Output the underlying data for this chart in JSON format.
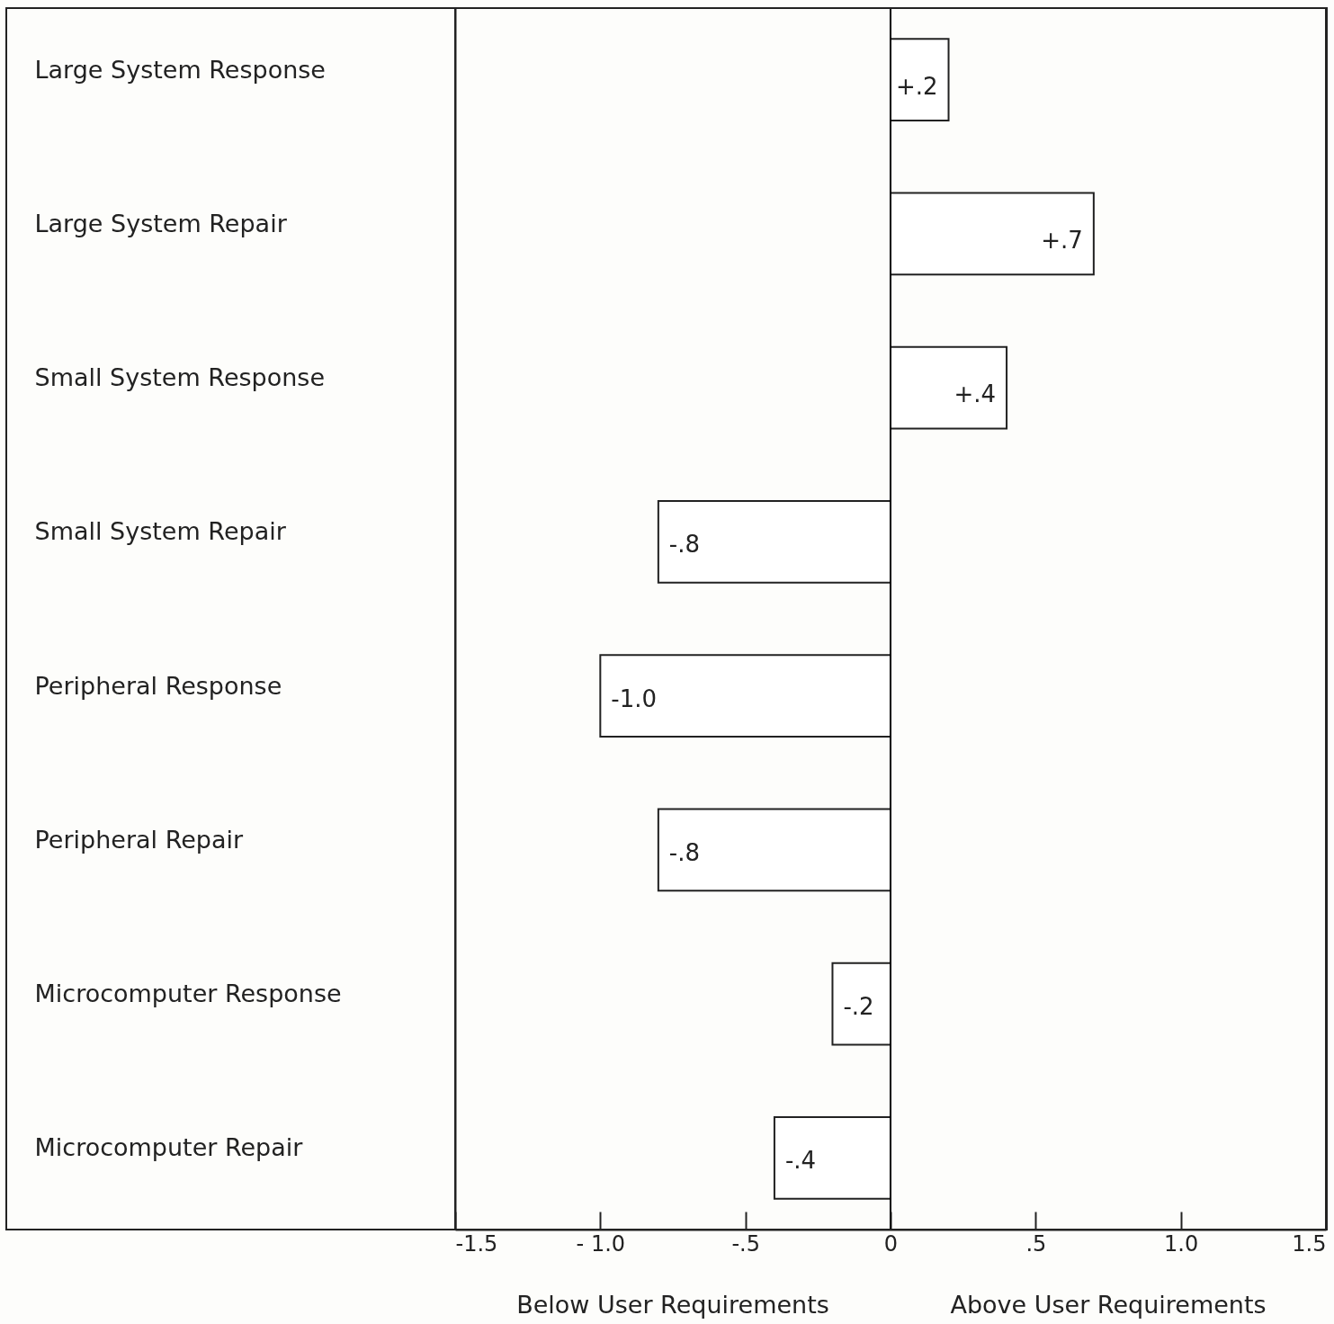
{
  "chart_data": {
    "type": "bar",
    "orientation": "horizontal",
    "categories": [
      "Large System Response",
      "Large System Repair",
      "Small System Response",
      "Small System Repair",
      "Peripheral Response",
      "Peripheral Repair",
      "Microcomputer Response",
      "Microcomputer Repair"
    ],
    "values": [
      0.2,
      0.7,
      0.4,
      -0.8,
      -1.0,
      -0.8,
      -0.2,
      -0.4
    ],
    "value_labels": [
      "+.2",
      "+.7",
      "+.4",
      "-.8",
      "-1.0",
      "-.8",
      "-.2",
      "-.4"
    ],
    "color": "#ffffff",
    "xlim": [
      -1.5,
      1.5
    ],
    "xticks": [
      {
        "value": -1.5,
        "label": "-1.5"
      },
      {
        "value": -1,
        "label": "- 1.0"
      },
      {
        "value": -0.5,
        "label": "-.5"
      },
      0,
      {
        "value": 0.5,
        "label": ".5"
      },
      {
        "value": 1,
        "label": "1.0"
      },
      {
        "value": 1.5,
        "label": "1.5"
      }
    ],
    "ref_lines": [
      {
        "axis": "x",
        "value": 0,
        "color": "#000000"
      }
    ],
    "grid": false,
    "annotations": [
      "Below User Requirements",
      "Above User Requirements"
    ]
  }
}
